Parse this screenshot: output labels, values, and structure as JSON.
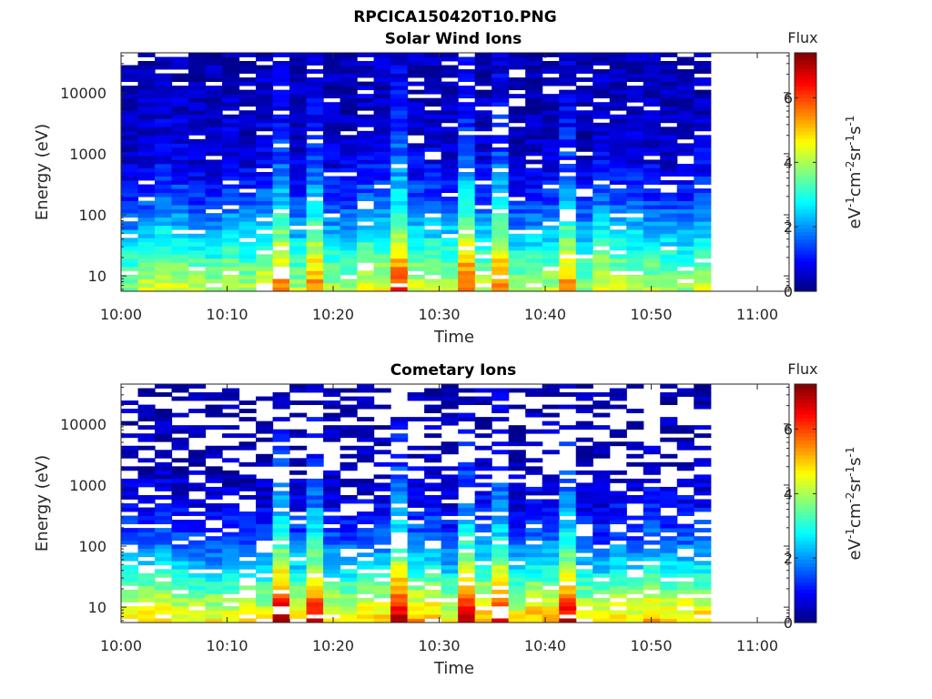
{
  "figure_title": "RPCICA150420T10.PNG",
  "chart_data": [
    {
      "type": "heatmap",
      "title": "Solar Wind Ions",
      "xlabel": "Time",
      "ylabel": "Energy (eV)",
      "x_ticks": [
        "10:00",
        "10:10",
        "10:20",
        "10:30",
        "10:40",
        "10:50",
        "11:00"
      ],
      "x_range_minutes": [
        0,
        63
      ],
      "data_end_minutes": 55.6,
      "y_ticks": [
        "10",
        "100",
        "1000",
        "10000"
      ],
      "y_tick_values": [
        10,
        100,
        1000,
        10000
      ],
      "ylim": [
        5.6,
        45000
      ],
      "y_scale": "log",
      "colorbar": {
        "label": "Flux",
        "unit": "eV-1cm-2sr-1s-1",
        "ticks": [
          "0",
          "2",
          "4",
          "6"
        ],
        "range": [
          0,
          7.4
        ]
      },
      "colormap": "jet",
      "grid": false,
      "flux_profile_by_log_energy": [
        4.3,
        3.4,
        2.4,
        1.5,
        0.9,
        0.6,
        0.45,
        0.4,
        0.35
      ],
      "hot_times_minutes": [
        14.5,
        17.8,
        26,
        32.5,
        36,
        42
      ]
    },
    {
      "type": "heatmap",
      "title": "Cometary Ions",
      "xlabel": "Time",
      "ylabel": "Energy (eV)",
      "x_ticks": [
        "10:00",
        "10:10",
        "10:20",
        "10:30",
        "10:40",
        "10:50",
        "11:00"
      ],
      "x_range_minutes": [
        0,
        63
      ],
      "data_end_minutes": 55.6,
      "y_ticks": [
        "10",
        "100",
        "1000",
        "10000"
      ],
      "y_tick_values": [
        10,
        100,
        1000,
        10000
      ],
      "ylim": [
        5.6,
        45000
      ],
      "y_scale": "log",
      "colorbar": {
        "label": "Flux",
        "unit": "eV-1cm-2sr-1s-1",
        "ticks": [
          "0",
          "2",
          "4",
          "6"
        ],
        "range": [
          0,
          7.4
        ]
      },
      "colormap": "jet",
      "grid": false,
      "flux_profile_by_log_energy": [
        5.0,
        3.8,
        2.4,
        1.4,
        0.8,
        0.5,
        0.35,
        0.3,
        0.25
      ],
      "hot_times_minutes": [
        14.5,
        17.8,
        26,
        32.5,
        36,
        42
      ]
    }
  ]
}
